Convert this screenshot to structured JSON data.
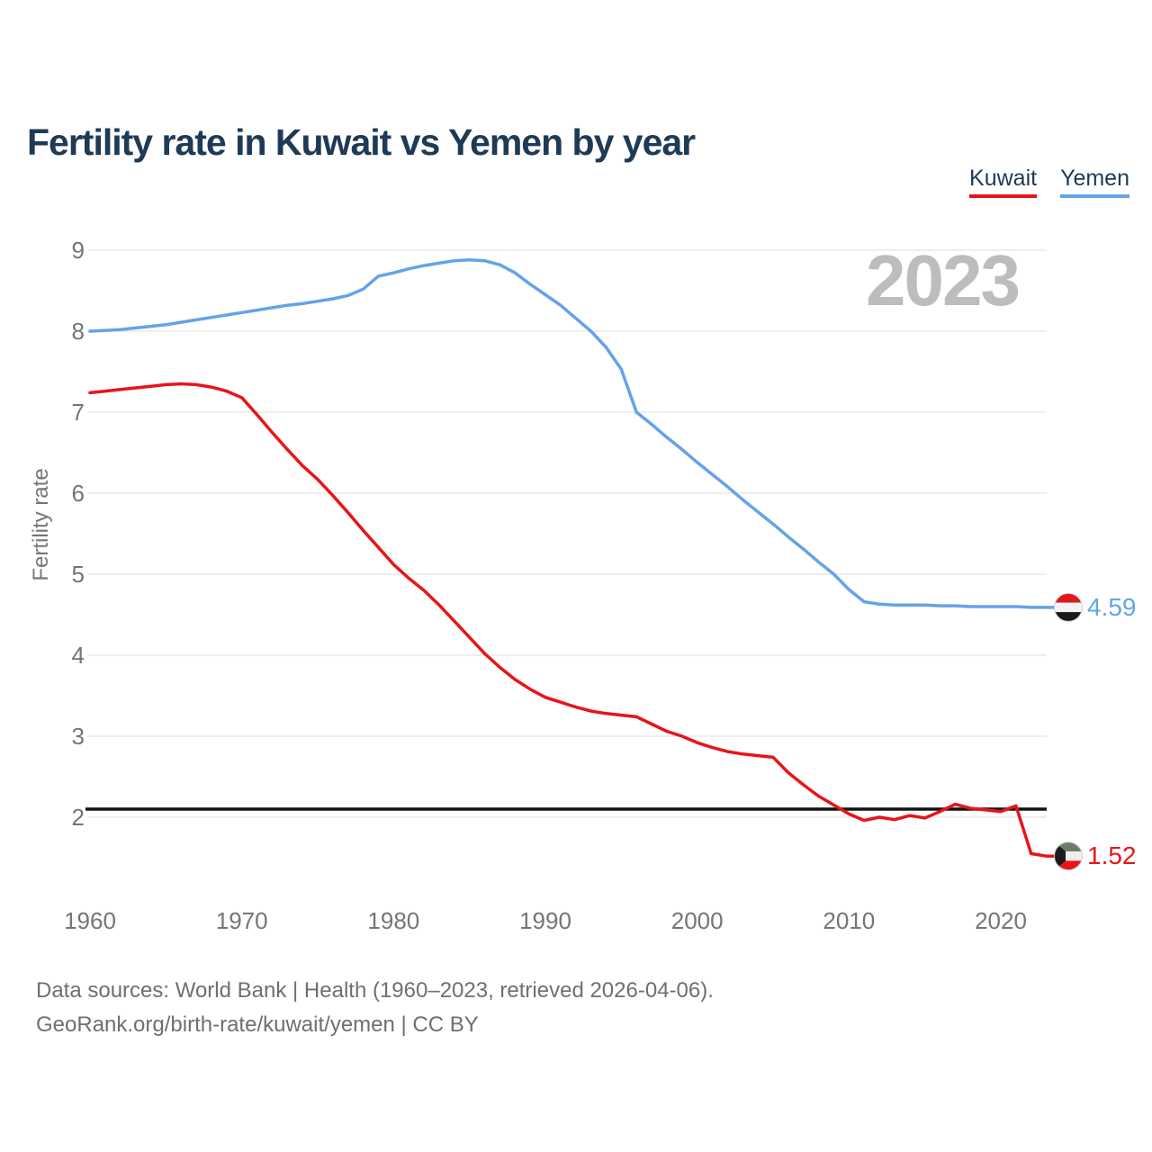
{
  "colors": {
    "kuwait": "#e8141a",
    "yemen": "#64a3e8",
    "title_text": "#1e3a56",
    "axis_text": "#757575",
    "grid": "#e9e9e9",
    "reference_line": "#121212",
    "watermark": "#bdbdbd",
    "footer_text": "#6f6f6f"
  },
  "watermark": "2023",
  "footer": {
    "line1": "Data sources: World Bank | Health (1960–2023, retrieved 2026-04-06).",
    "line2": "GeoRank.org/birth-rate/kuwait/yemen | CC BY"
  },
  "chart_data": {
    "type": "line",
    "title": "Fertility rate in Kuwait vs Yemen by year",
    "xlabel": "",
    "ylabel": "Fertility rate",
    "grid": true,
    "legend_position": "top-right",
    "watermark": "2023",
    "reference_line": 2.1,
    "ylim": [
      1.3,
      9.3
    ],
    "x_range": [
      1960,
      2023
    ],
    "x_step": 1,
    "x_ticks": [
      1960,
      1970,
      1980,
      1990,
      2000,
      2010,
      2020
    ],
    "y_ticks": [
      9,
      8,
      7,
      6,
      5,
      4,
      3,
      2
    ],
    "series": [
      {
        "name": "Kuwait",
        "color": "#e8141a",
        "end_label": "1.52",
        "flag": "kuwait",
        "values": [
          7.24,
          7.26,
          7.28,
          7.3,
          7.32,
          7.34,
          7.35,
          7.34,
          7.31,
          7.26,
          7.18,
          6.97,
          6.75,
          6.54,
          6.34,
          6.17,
          5.97,
          5.76,
          5.54,
          5.33,
          5.12,
          4.95,
          4.8,
          4.62,
          4.42,
          4.22,
          4.02,
          3.85,
          3.7,
          3.58,
          3.48,
          3.42,
          3.36,
          3.31,
          3.28,
          3.26,
          3.24,
          3.15,
          3.06,
          3.0,
          2.92,
          2.86,
          2.81,
          2.78,
          2.76,
          2.74,
          2.55,
          2.4,
          2.26,
          2.15,
          2.04,
          1.96,
          2.0,
          1.97,
          2.02,
          1.99,
          2.07,
          2.16,
          2.11,
          2.09,
          2.07,
          2.14,
          1.55,
          1.52
        ]
      },
      {
        "name": "Yemen",
        "color": "#64a3e8",
        "end_label": "4.59",
        "flag": "yemen",
        "values": [
          8.0,
          8.01,
          8.02,
          8.04,
          8.06,
          8.08,
          8.11,
          8.14,
          8.17,
          8.2,
          8.23,
          8.26,
          8.29,
          8.32,
          8.34,
          8.37,
          8.4,
          8.44,
          8.52,
          8.68,
          8.72,
          8.77,
          8.81,
          8.84,
          8.87,
          8.88,
          8.87,
          8.82,
          8.72,
          8.58,
          8.45,
          8.32,
          8.16,
          8.0,
          7.8,
          7.53,
          7.0,
          6.85,
          6.69,
          6.54,
          6.38,
          6.23,
          6.08,
          5.92,
          5.77,
          5.62,
          5.46,
          5.31,
          5.15,
          5.0,
          4.81,
          4.66,
          4.63,
          4.62,
          4.62,
          4.62,
          4.61,
          4.61,
          4.6,
          4.6,
          4.6,
          4.6,
          4.59,
          4.59
        ]
      }
    ]
  }
}
